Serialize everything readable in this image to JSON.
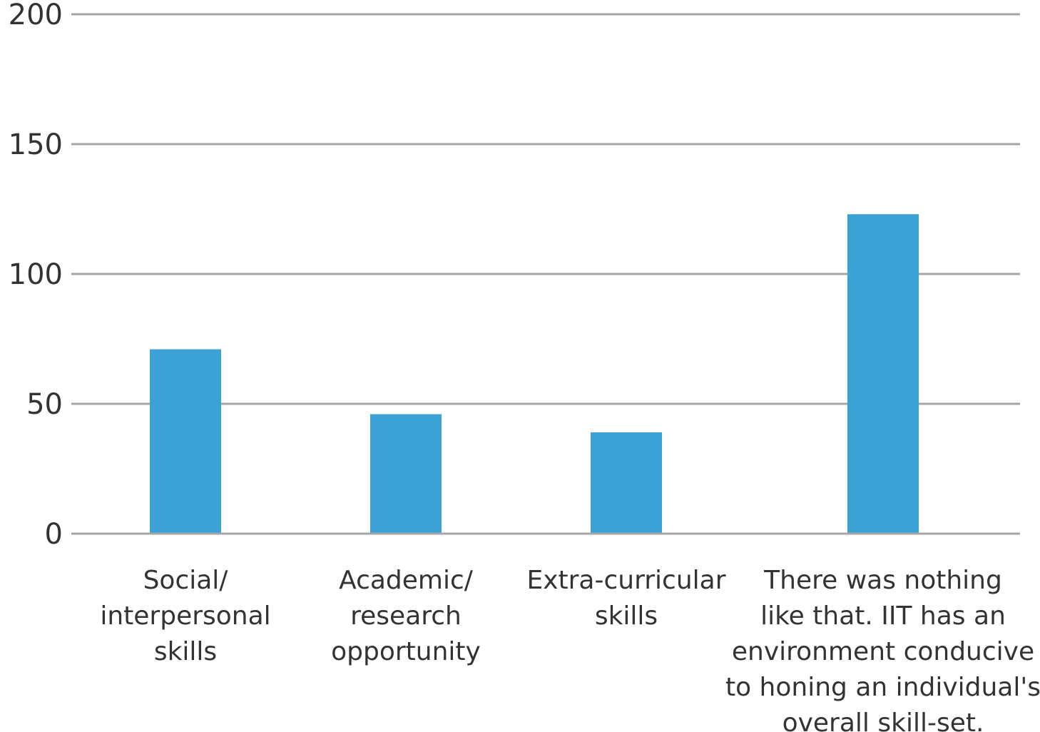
{
  "chart_data": {
    "type": "bar",
    "categories": [
      [
        "Social/",
        "interpersonal",
        "skills"
      ],
      [
        "Academic/",
        "research",
        "opportunity"
      ],
      [
        "Extra-curricular",
        "skills"
      ],
      [
        "There was nothing",
        "like that. IIT has an",
        "environment conducive",
        "to honing an individual's",
        "overall skill-set."
      ]
    ],
    "values": [
      71,
      46,
      39,
      123
    ],
    "ylim": [
      0,
      200
    ],
    "yticks": [
      "0",
      "50",
      "100",
      "150",
      "200"
    ],
    "ytick_values": [
      0,
      50,
      100,
      150,
      200
    ],
    "grid": true,
    "bar_color": "#3ca2d5",
    "grid_color": "#a6a6a6"
  }
}
